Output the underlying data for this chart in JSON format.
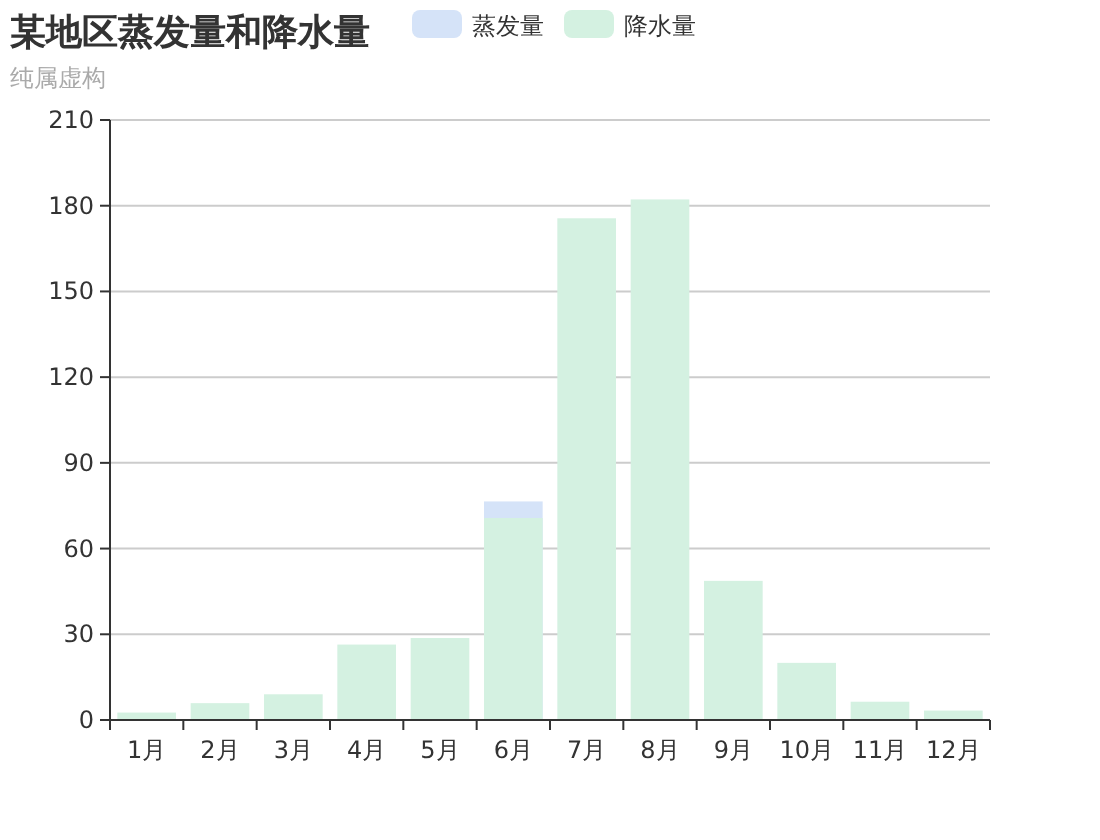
{
  "chart_data": {
    "type": "bar",
    "title": "某地区蒸发量和降水量",
    "subtitle": "纯属虚构",
    "categories": [
      "1月",
      "2月",
      "3月",
      "4月",
      "5月",
      "6月",
      "7月",
      "8月",
      "9月",
      "10月",
      "11月",
      "12月"
    ],
    "series": [
      {
        "name": "蒸发量",
        "color": "#d5e3f8",
        "values": [
          null,
          null,
          null,
          null,
          null,
          76.5,
          null,
          null,
          null,
          null,
          null,
          null
        ]
      },
      {
        "name": "降水量",
        "color": "#d4f1e1",
        "values": [
          2.6,
          5.9,
          9.0,
          26.4,
          28.7,
          70.7,
          175.6,
          182.2,
          48.7,
          20.0,
          6.4,
          3.3
        ]
      }
    ],
    "ylim": [
      0,
      210
    ],
    "yticks": [
      0,
      30,
      60,
      90,
      120,
      150,
      180,
      210
    ],
    "grid": "y",
    "legend": "top"
  }
}
